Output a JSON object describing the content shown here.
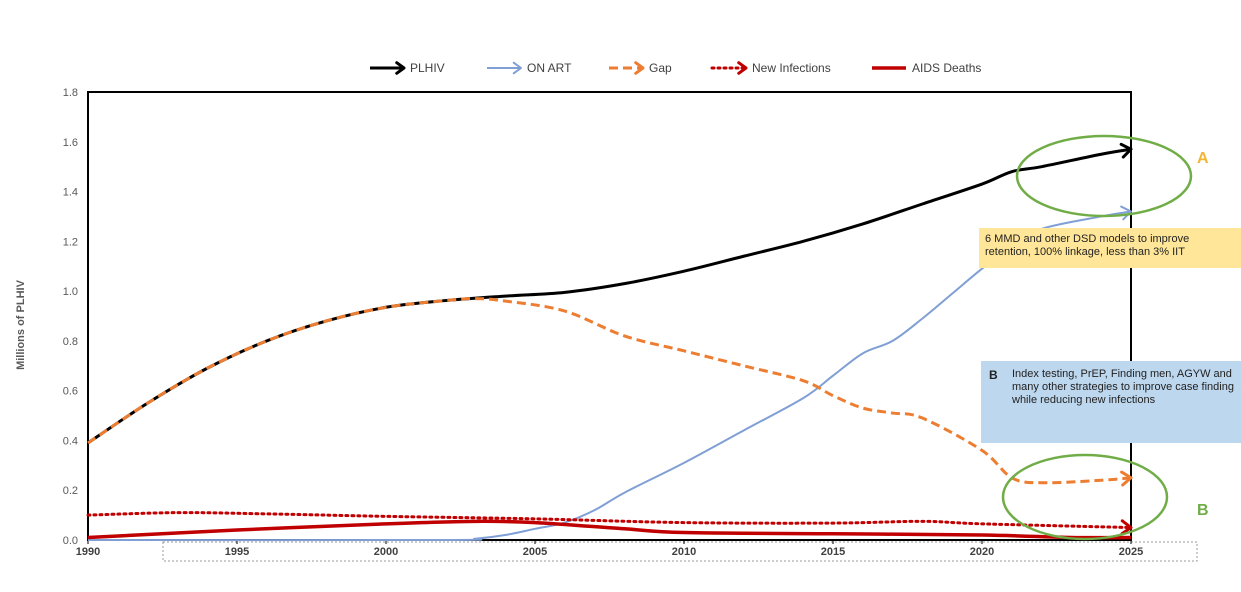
{
  "chart_data": {
    "type": "line",
    "ylabel": "Millions of PLHIV",
    "xlabel": "",
    "xlim": [
      1990,
      2025
    ],
    "ylim": [
      0,
      1.8
    ],
    "y_ticks": [
      "0.0",
      "0.2",
      "0.4",
      "0.6",
      "0.8",
      "1.0",
      "1.2",
      "1.4",
      "1.6",
      "1.8"
    ],
    "x_ticks": [
      "1990",
      "1995",
      "2000",
      "2005",
      "2010",
      "2015",
      "2020",
      "2025"
    ],
    "grid": false,
    "legend_position": "top",
    "series": [
      {
        "name": "PLHIV",
        "color": "#000000",
        "style": "solid",
        "x": [
          1990,
          1992,
          1994,
          1996,
          1998,
          2000,
          2002,
          2004,
          2006,
          2008,
          2010,
          2012,
          2014,
          2016,
          2018,
          2020,
          2021,
          2022,
          2024,
          2025
        ],
        "values": [
          0.39,
          0.55,
          0.69,
          0.8,
          0.88,
          0.935,
          0.962,
          0.98,
          0.995,
          1.03,
          1.08,
          1.14,
          1.2,
          1.27,
          1.35,
          1.43,
          1.48,
          1.5,
          1.55,
          1.57
        ]
      },
      {
        "name": "ON ART",
        "color": "#7F9FD5",
        "style": "solid",
        "x": [
          1990,
          2002,
          2003,
          2004,
          2005,
          2006,
          2007,
          2008,
          2010,
          2012,
          2014,
          2015,
          2016,
          2017,
          2018,
          2019,
          2020,
          2021,
          2022,
          2024,
          2025
        ],
        "values": [
          0,
          0,
          0.005,
          0.02,
          0.045,
          0.07,
          0.12,
          0.19,
          0.31,
          0.44,
          0.57,
          0.66,
          0.75,
          0.8,
          0.89,
          0.99,
          1.09,
          1.18,
          1.25,
          1.3,
          1.32
        ]
      },
      {
        "name": "Gap",
        "color": "#ED7D31",
        "style": "dashed",
        "x": [
          1990,
          1992,
          1994,
          1996,
          1998,
          2000,
          2002,
          2003,
          2004,
          2006,
          2008,
          2010,
          2012,
          2014,
          2015,
          2016,
          2017,
          2018,
          2020,
          2021,
          2022,
          2024,
          2025
        ],
        "values": [
          0.39,
          0.55,
          0.69,
          0.8,
          0.88,
          0.935,
          0.962,
          0.97,
          0.96,
          0.92,
          0.82,
          0.76,
          0.7,
          0.64,
          0.58,
          0.53,
          0.51,
          0.49,
          0.36,
          0.25,
          0.23,
          0.24,
          0.25
        ]
      },
      {
        "name": "New Infections",
        "color": "#C00000",
        "style": "dotted",
        "x": [
          1990,
          1993,
          1996,
          2000,
          2005,
          2010,
          2015,
          2018,
          2020,
          2025
        ],
        "values": [
          0.1,
          0.11,
          0.105,
          0.095,
          0.085,
          0.07,
          0.068,
          0.075,
          0.065,
          0.05
        ]
      },
      {
        "name": "AIDS Deaths",
        "color": "#C00000",
        "style": "solid-thick",
        "x": [
          1990,
          1995,
          2000,
          2003,
          2005,
          2008,
          2010,
          2015,
          2020,
          2023,
          2025
        ],
        "values": [
          0.01,
          0.04,
          0.065,
          0.075,
          0.07,
          0.045,
          0.03,
          0.025,
          0.02,
          0.01,
          0.01
        ]
      }
    ]
  },
  "annotations": {
    "note_a_text": "6 MMD  and other DSD models to improve retention, 100% linkage, less than 3% IIT",
    "note_b_tag": "B",
    "note_b_text": "Index testing, PrEP, Finding men, AGYW and many other strategies to improve case finding while reducing new infections",
    "ext_a_label": "A",
    "ext_b_label": "B",
    "ext_a_color": "#F2B632",
    "ext_b_color": "#70AD47",
    "ellipse_color": "#70AD47"
  }
}
